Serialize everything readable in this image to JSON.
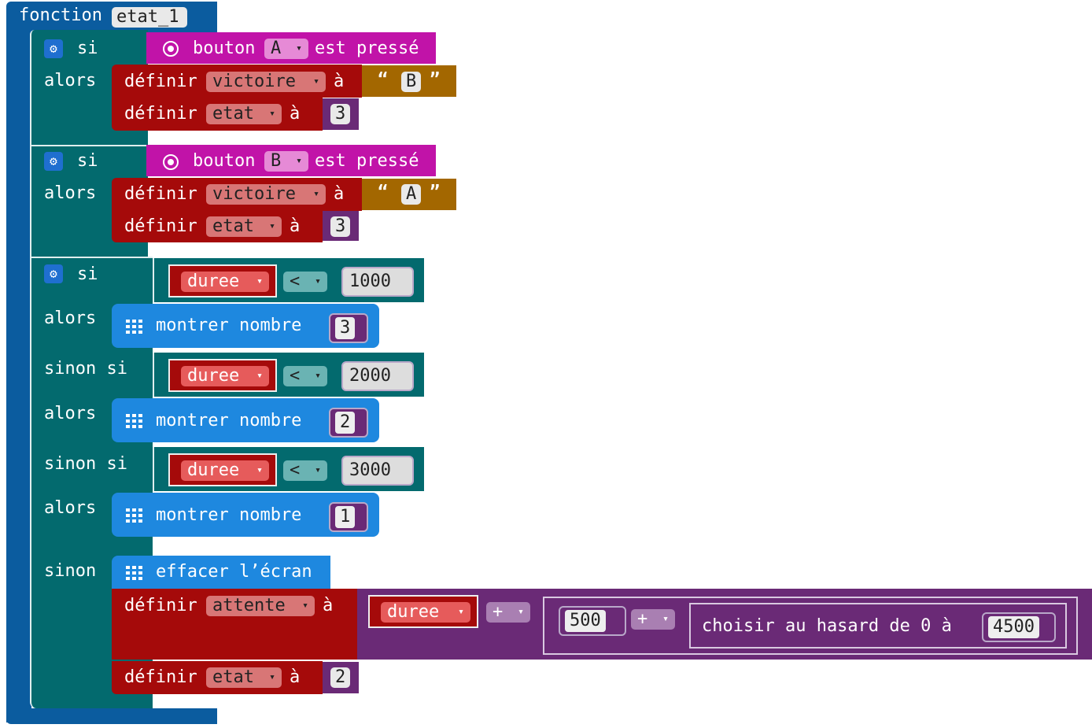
{
  "function": {
    "keyword": "fonction",
    "name": "etat_1"
  },
  "if1": {
    "si": "si",
    "alors": "alors",
    "cond": {
      "bouton": "bouton",
      "button": "A",
      "est_presse": "est pressé"
    },
    "set1": {
      "definir": "définir",
      "var": "victoire",
      "a": "à",
      "open_quote": "“",
      "value": "B",
      "close_quote": "”"
    },
    "set2": {
      "definir": "définir",
      "var": "etat",
      "a": "à",
      "value": "3"
    }
  },
  "if2": {
    "si": "si",
    "alors": "alors",
    "cond": {
      "bouton": "bouton",
      "button": "B",
      "est_presse": "est pressé"
    },
    "set1": {
      "definir": "définir",
      "var": "victoire",
      "a": "à",
      "open_quote": "“",
      "value": "A",
      "close_quote": "”"
    },
    "set2": {
      "definir": "définir",
      "var": "etat",
      "a": "à",
      "value": "3"
    }
  },
  "if3": {
    "si": "si",
    "alors": "alors",
    "sinon_si": "sinon si",
    "sinon": "sinon",
    "branches": [
      {
        "var": "duree",
        "op": "<",
        "value": "1000",
        "action": "montrer nombre",
        "show": "3"
      },
      {
        "var": "duree",
        "op": "<",
        "value": "2000",
        "action": "montrer nombre",
        "show": "2"
      },
      {
        "var": "duree",
        "op": "<",
        "value": "3000",
        "action": "montrer nombre",
        "show": "1"
      }
    ],
    "else": {
      "clear": "effacer l’écran",
      "set_attente": {
        "definir": "définir",
        "var": "attente",
        "a": "à",
        "var2": "duree",
        "plus1": "+",
        "num": "500",
        "plus2": "+",
        "random": "choisir au hasard de 0 à",
        "max": "4500"
      },
      "set_etat": {
        "definir": "définir",
        "var": "etat",
        "a": "à",
        "value": "2"
      }
    }
  },
  "icons": {
    "dropdown": "▾",
    "gear": "⚙"
  },
  "colors": {
    "function": "#0b5c9f",
    "logic": "#036a6e",
    "input": "#c113a8",
    "variables": "#a50a0a",
    "text": "#a36700",
    "math": "#6a2a76",
    "basic": "#1e88df"
  }
}
